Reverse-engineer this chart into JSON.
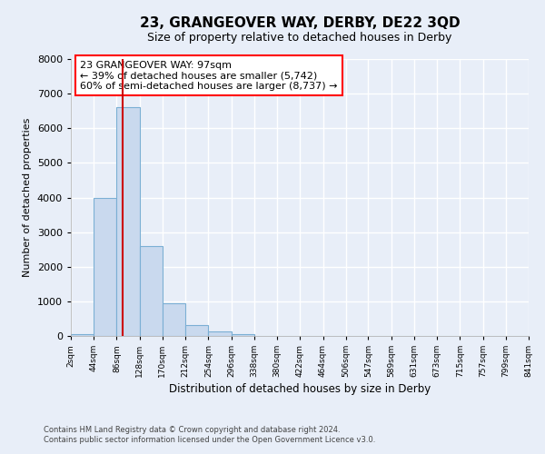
{
  "title": "23, GRANGEOVER WAY, DERBY, DE22 3QD",
  "subtitle": "Size of property relative to detached houses in Derby",
  "xlabel": "Distribution of detached houses by size in Derby",
  "ylabel": "Number of detached properties",
  "bar_color": "#c9d9ee",
  "bar_edge_color": "#7bafd4",
  "background_color": "#e8eef8",
  "plot_bg_color": "#e8eef8",
  "grid_color": "#ffffff",
  "annotation_box_text": "23 GRANGEOVER WAY: 97sqm\n← 39% of detached houses are smaller (5,742)\n60% of semi-detached houses are larger (8,737) →",
  "vline_x": 97,
  "vline_color": "#cc0000",
  "bin_edges": [
    2,
    44,
    86,
    128,
    170,
    212,
    254,
    296,
    338,
    380,
    422,
    464,
    506,
    547,
    589,
    631,
    673,
    715,
    757,
    799,
    841
  ],
  "bar_heights": [
    50,
    4000,
    6600,
    2600,
    950,
    320,
    130,
    50,
    0,
    0,
    0,
    0,
    0,
    0,
    0,
    0,
    0,
    0,
    0,
    0
  ],
  "ylim": [
    0,
    8000
  ],
  "tick_labels": [
    "2sqm",
    "44sqm",
    "86sqm",
    "128sqm",
    "170sqm",
    "212sqm",
    "254sqm",
    "296sqm",
    "338sqm",
    "380sqm",
    "422sqm",
    "464sqm",
    "506sqm",
    "547sqm",
    "589sqm",
    "631sqm",
    "673sqm",
    "715sqm",
    "757sqm",
    "799sqm",
    "841sqm"
  ],
  "footer_line1": "Contains HM Land Registry data © Crown copyright and database right 2024.",
  "footer_line2": "Contains public sector information licensed under the Open Government Licence v3.0."
}
